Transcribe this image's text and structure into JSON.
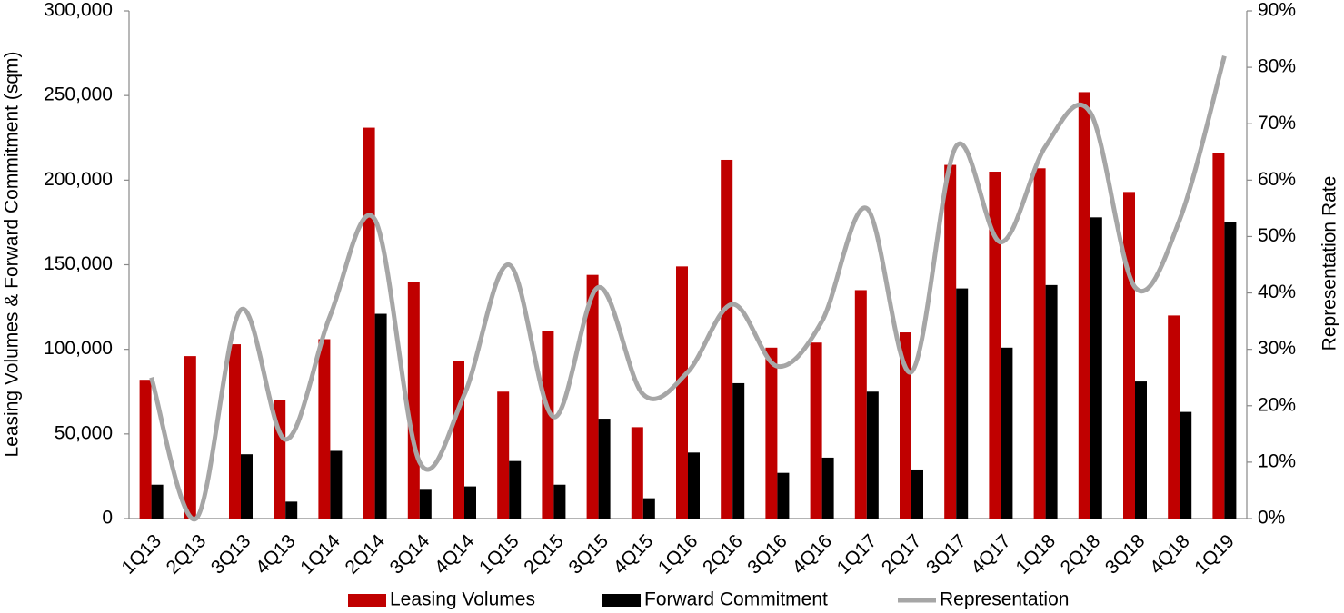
{
  "chart_data": {
    "type": "bar-line",
    "y_label": "Leasing Volumes & Forward Commitment (sqm)",
    "y2_label": "Representation Rate",
    "categories": [
      "1Q13",
      "2Q13",
      "3Q13",
      "4Q13",
      "1Q14",
      "2Q14",
      "3Q14",
      "4Q14",
      "1Q15",
      "2Q15",
      "3Q15",
      "4Q15",
      "1Q16",
      "2Q16",
      "3Q16",
      "4Q16",
      "1Q17",
      "2Q17",
      "3Q17",
      "4Q17",
      "1Q18",
      "2Q18",
      "3Q18",
      "4Q18",
      "1Q19"
    ],
    "series": [
      {
        "name": "Leasing Volumes",
        "color": "#c00000",
        "kind": "bar",
        "values": [
          82000,
          96000,
          103000,
          70000,
          106000,
          231000,
          140000,
          93000,
          75000,
          111000,
          144000,
          54000,
          149000,
          212000,
          101000,
          104000,
          135000,
          110000,
          209000,
          205000,
          207000,
          252000,
          193000,
          120000,
          216000
        ]
      },
      {
        "name": "Forward Commitment",
        "color": "#000000",
        "kind": "bar",
        "values": [
          20000,
          0,
          38000,
          10000,
          40000,
          121000,
          17000,
          19000,
          34000,
          20000,
          59000,
          12000,
          39000,
          80000,
          27000,
          36000,
          75000,
          29000,
          136000,
          101000,
          138000,
          178000,
          81000,
          63000,
          175000
        ]
      },
      {
        "name": "Representation",
        "color": "#a6a6a6",
        "kind": "line",
        "axis": "y2",
        "values": [
          25,
          0,
          37,
          14,
          36,
          53,
          10,
          22,
          45,
          18,
          41,
          22,
          26,
          38,
          27,
          35,
          55,
          26,
          66,
          49,
          66,
          72,
          41,
          53,
          82
        ]
      }
    ],
    "ylim": [
      0,
      300000
    ],
    "yticks": [
      0,
      {
        "value": 50000,
        "label": "50,000"
      },
      {
        "value": 100000,
        "label": "100,000"
      },
      {
        "value": 150000,
        "label": "150,000"
      },
      {
        "value": 200000,
        "label": "200,000"
      },
      {
        "value": 250000,
        "label": "250,000"
      },
      {
        "value": 300000,
        "label": "300,000"
      }
    ],
    "y2lim": [
      0,
      90
    ],
    "y2ticks": [
      {
        "value": 0,
        "label": "0%"
      },
      {
        "value": 10,
        "label": "10%"
      },
      {
        "value": 20,
        "label": "20%"
      },
      {
        "value": 30,
        "label": "30%"
      },
      {
        "value": 40,
        "label": "40%"
      },
      {
        "value": 50,
        "label": "50%"
      },
      {
        "value": 60,
        "label": "60%"
      },
      {
        "value": 70,
        "label": "70%"
      },
      {
        "value": 80,
        "label": "80%"
      },
      {
        "value": 90,
        "label": "90%"
      }
    ],
    "legend": "bottom"
  }
}
